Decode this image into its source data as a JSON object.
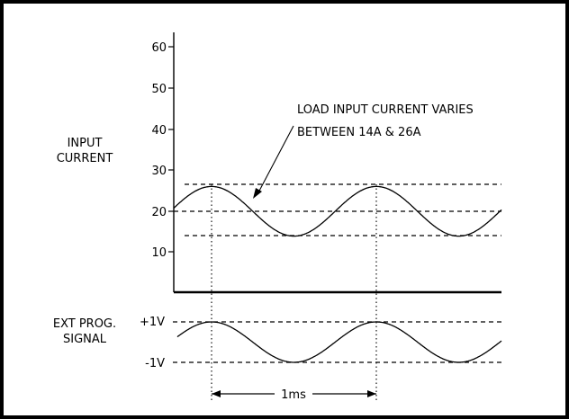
{
  "current_axis": {
    "label_line1": "INPUT",
    "label_line2": "CURRENT",
    "ticks": [
      {
        "value": 60,
        "text": "60"
      },
      {
        "value": 50,
        "text": "50"
      },
      {
        "value": 40,
        "text": "40"
      },
      {
        "value": 30,
        "text": "30"
      },
      {
        "value": 20,
        "text": "20"
      },
      {
        "value": 10,
        "text": "10"
      }
    ]
  },
  "current_wave": {
    "center_amps": 20,
    "min_amps": 14,
    "max_amps": 26,
    "period_ms": 1
  },
  "annotation": {
    "line1": "LOAD INPUT CURRENT VARIES",
    "line2": "BETWEEN 14A & 26A"
  },
  "signal": {
    "label_line1": "EXT PROG.",
    "label_line2": "SIGNAL",
    "pos_label": "+1V",
    "neg_label": "-1V",
    "amplitude_volts": 1
  },
  "period_marker": {
    "label": "1ms"
  }
}
